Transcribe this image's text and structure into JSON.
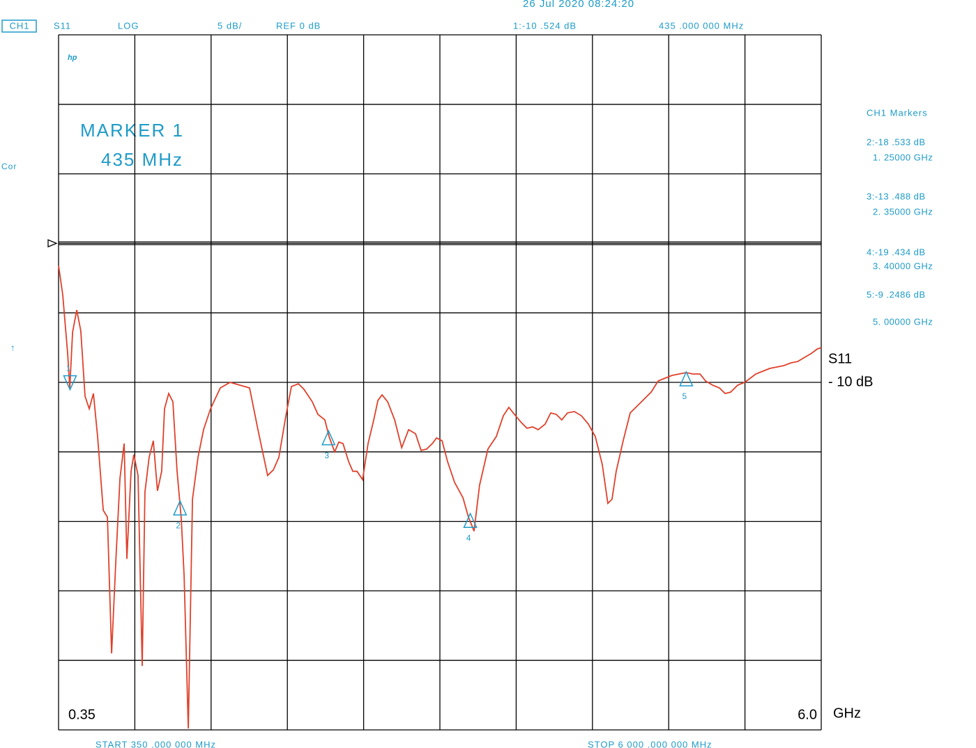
{
  "header": {
    "channel": "CH1",
    "parameter": "S11",
    "format": "LOG",
    "scale": "5 dB/",
    "date": "26 Jul 2020  08:24:20",
    "logo": "hp",
    "annotation_1": "MARKER 1",
    "annotation_2": "435 MHz",
    "cor": "Cor",
    "arrow": "↑",
    "markers_title": "CH1  Markers",
    "start": "START   350 .000   000   MHz",
    "stop": "STOP  6 000 .000   000   MHz"
  },
  "chart_data": {
    "type": "line",
    "xlim": [
      0.35,
      6
    ],
    "ylim": [
      -35,
      15
    ],
    "xticks": [
      0.35,
      {
        "value": 6,
        "label": "6.0"
      }
    ],
    "yticks": [
      {
        "value": -10,
        "label": "- 10 dB"
      }
    ],
    "x_label": "GHz",
    "reference": {
      "value": 0,
      "label": "REF 0 dB"
    },
    "x": [
      0.35,
      0.381,
      0.417,
      0.433,
      0.454,
      0.485,
      0.515,
      0.546,
      0.577,
      0.608,
      0.639,
      0.681,
      0.712,
      0.743,
      0.774,
      0.805,
      0.836,
      0.856,
      0.887,
      0.908,
      0.939,
      0.97,
      0.99,
      1.021,
      1.052,
      1.083,
      1.114,
      1.135,
      1.166,
      1.197,
      1.228,
      1.259,
      1.28,
      1.311,
      1.342,
      1.383,
      1.424,
      1.476,
      1.548,
      1.621,
      1.693,
      1.765,
      1.827,
      1.899,
      1.941,
      1.982,
      2.034,
      2.075,
      2.127,
      2.168,
      2.23,
      2.271,
      2.323,
      2.354,
      2.395,
      2.426,
      2.457,
      2.499,
      2.53,
      2.561,
      2.602,
      2.643,
      2.685,
      2.716,
      2.747,
      2.788,
      2.84,
      2.892,
      2.943,
      2.995,
      3.036,
      3.077,
      3.119,
      3.15,
      3.191,
      3.232,
      3.284,
      3.346,
      3.387,
      3.428,
      3.469,
      3.531,
      3.593,
      3.645,
      3.686,
      3.727,
      3.779,
      3.82,
      3.862,
      3.903,
      3.955,
      3.996,
      4.037,
      4.078,
      4.12,
      4.171,
      4.223,
      4.275,
      4.326,
      4.378,
      4.419,
      4.45,
      4.481,
      4.533,
      4.585,
      4.637,
      4.688,
      4.74,
      4.792,
      4.843,
      4.895,
      4.947,
      4.998,
      5.05,
      5.102,
      5.143,
      5.195,
      5.246,
      5.288,
      5.329,
      5.381,
      5.433,
      5.474,
      5.515,
      5.567,
      5.619,
      5.67,
      5.722,
      5.774,
      5.825,
      5.877,
      5.929,
      5.97,
      6.0
    ],
    "series": [
      {
        "name": "S11",
        "color": "#e0402a",
        "values": [
          -1.6,
          -3.7,
          -7.9,
          -10.4,
          -6.4,
          -4.8,
          -6.3,
          -11,
          -11.9,
          -10.8,
          -13.9,
          -19.2,
          -19.7,
          -29.5,
          -22.9,
          -16.9,
          -14.4,
          -22.7,
          -16.4,
          -15.2,
          -16.7,
          -30.4,
          -17.9,
          -15.4,
          -14.2,
          -17.8,
          -16.4,
          -11.9,
          -10.8,
          -11.4,
          -16.4,
          -19.8,
          -23.9,
          -34.9,
          -18.4,
          -15.4,
          -13.4,
          -11.9,
          -10.4,
          -10,
          -10.2,
          -10.4,
          -13.4,
          -16.7,
          -16.3,
          -15.4,
          -12.4,
          -10.3,
          -10.1,
          -10.5,
          -11.4,
          -12.3,
          -12.7,
          -13.9,
          -15,
          -14.3,
          -14.4,
          -15.7,
          -16.4,
          -16.4,
          -17,
          -14.4,
          -12.7,
          -11.3,
          -10.9,
          -11.4,
          -12.7,
          -14.7,
          -13.4,
          -13.7,
          -14.9,
          -14.8,
          -14.4,
          -14,
          -14.2,
          -15.7,
          -17.2,
          -18.3,
          -19.7,
          -20.7,
          -17.4,
          -14.8,
          -13.9,
          -12.4,
          -11.8,
          -12.3,
          -12.9,
          -13.3,
          -13.2,
          -13.4,
          -13,
          -12.2,
          -12.3,
          -12.7,
          -12.2,
          -12.1,
          -12.4,
          -13,
          -13.9,
          -15.9,
          -18.7,
          -18.4,
          -16.4,
          -14.2,
          -12.2,
          -11.7,
          -11.2,
          -10.7,
          -9.9,
          -9.7,
          -9.5,
          -9.4,
          -9.3,
          -9.4,
          -9.4,
          -9.9,
          -10.2,
          -10.4,
          -10.8,
          -10.7,
          -10.2,
          -10,
          -9.7,
          -9.4,
          -9.2,
          -9,
          -8.9,
          -8.8,
          -8.6,
          -8.5,
          -8.2,
          -7.9,
          -7.6,
          -7.5
        ]
      }
    ],
    "markers": [
      {
        "number": "1",
        "x": 0.435,
        "y": -10.524,
        "readout": "1:-10  .524   dB",
        "freq": "435 .000   000   MHz"
      },
      {
        "number": "2",
        "x": 1.25,
        "y": -18.533,
        "readout": "2:-18  .533   dB",
        "freq": "1. 25000    GHz"
      },
      {
        "number": "3",
        "x": 2.35,
        "y": -13.488,
        "readout": "3:-13  .488   dB",
        "freq": "2. 35000    GHz"
      },
      {
        "number": "4",
        "x": 3.4,
        "y": -19.434,
        "readout": "4:-19  .434   dB",
        "freq": "3. 40000    GHz"
      },
      {
        "number": "5",
        "x": 5.0,
        "y": -9.2486,
        "readout": "5:-9  .2486   dB",
        "freq": "5. 00000    GHz"
      }
    ]
  }
}
